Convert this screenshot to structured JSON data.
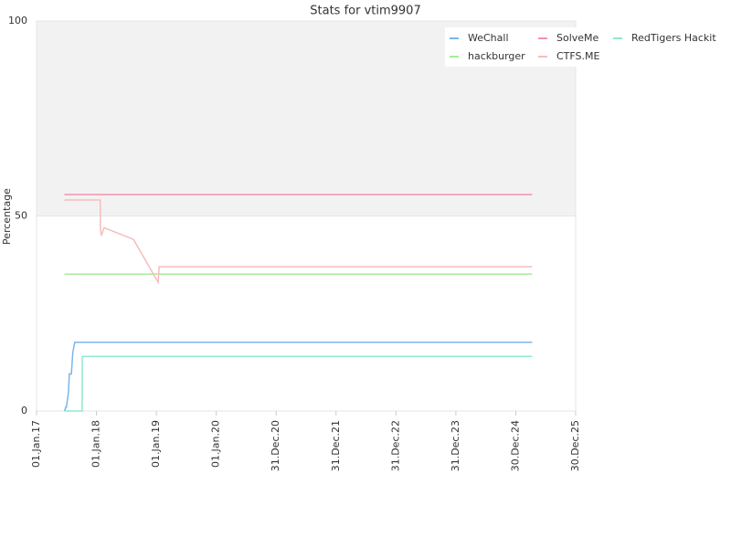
{
  "chart_data": {
    "type": "line",
    "title": "Stats for vtim9907",
    "y_label": "Percentage",
    "xlim": [
      "2017-01-01",
      "2025-12-30"
    ],
    "xticks": [
      {
        "value": "2017-01-01",
        "label": "01.Jan.17"
      },
      {
        "value": "2018-01-01",
        "label": "01.Jan.18"
      },
      {
        "value": "2019-01-01",
        "label": "01.Jan.19"
      },
      {
        "value": "2020-01-01",
        "label": "01.Jan.20"
      },
      {
        "value": "2020-12-31",
        "label": "31.Dec.20"
      },
      {
        "value": "2021-12-31",
        "label": "31.Dec.21"
      },
      {
        "value": "2022-12-31",
        "label": "31.Dec.22"
      },
      {
        "value": "2023-12-31",
        "label": "31.Dec.23"
      },
      {
        "value": "2024-12-30",
        "label": "30.Dec.24"
      },
      {
        "value": "2025-12-30",
        "label": "30.Dec.25"
      }
    ],
    "ylim": [
      0,
      100
    ],
    "yticks": [
      0,
      50,
      100
    ],
    "grid": true,
    "legend": "top-right",
    "series": [
      {
        "name": "WeChall",
        "color": "#7cb5ec",
        "x": [
          "2017-06-20",
          "2017-06-28",
          "2017-07-02",
          "2017-07-15",
          "2017-07-20",
          "2017-08-01",
          "2017-08-10",
          "2017-08-22",
          "2025-04-09"
        ],
        "values": [
          0,
          1,
          1,
          5,
          9.5,
          9.5,
          15,
          17.6,
          17.6
        ]
      },
      {
        "name": "SolveMe",
        "color": "#f492b0",
        "x": [
          "2017-06-20",
          "2025-04-09"
        ],
        "values": [
          55.5,
          55.5
        ]
      },
      {
        "name": "RedTigers Hackit",
        "color": "#8ee8d0",
        "x": [
          "2017-06-20",
          "2017-10-06",
          "2017-10-07",
          "2025-04-09"
        ],
        "values": [
          0,
          0,
          14,
          14
        ]
      },
      {
        "name": "hackburger",
        "color": "#a6ec99",
        "x": [
          "2017-06-20",
          "2025-04-09"
        ],
        "values": [
          35.1,
          35.1
        ]
      },
      {
        "name": "CTFS.ME",
        "color": "#f7bcbc",
        "x": [
          "2017-06-20",
          "2018-01-24",
          "2018-01-25",
          "2018-01-31",
          "2018-02-17",
          "2018-08-14",
          "2019-01-12",
          "2019-01-18",
          "2025-04-09"
        ],
        "values": [
          54.1,
          54.1,
          47,
          45,
          47,
          44,
          33,
          37,
          37
        ]
      }
    ]
  }
}
